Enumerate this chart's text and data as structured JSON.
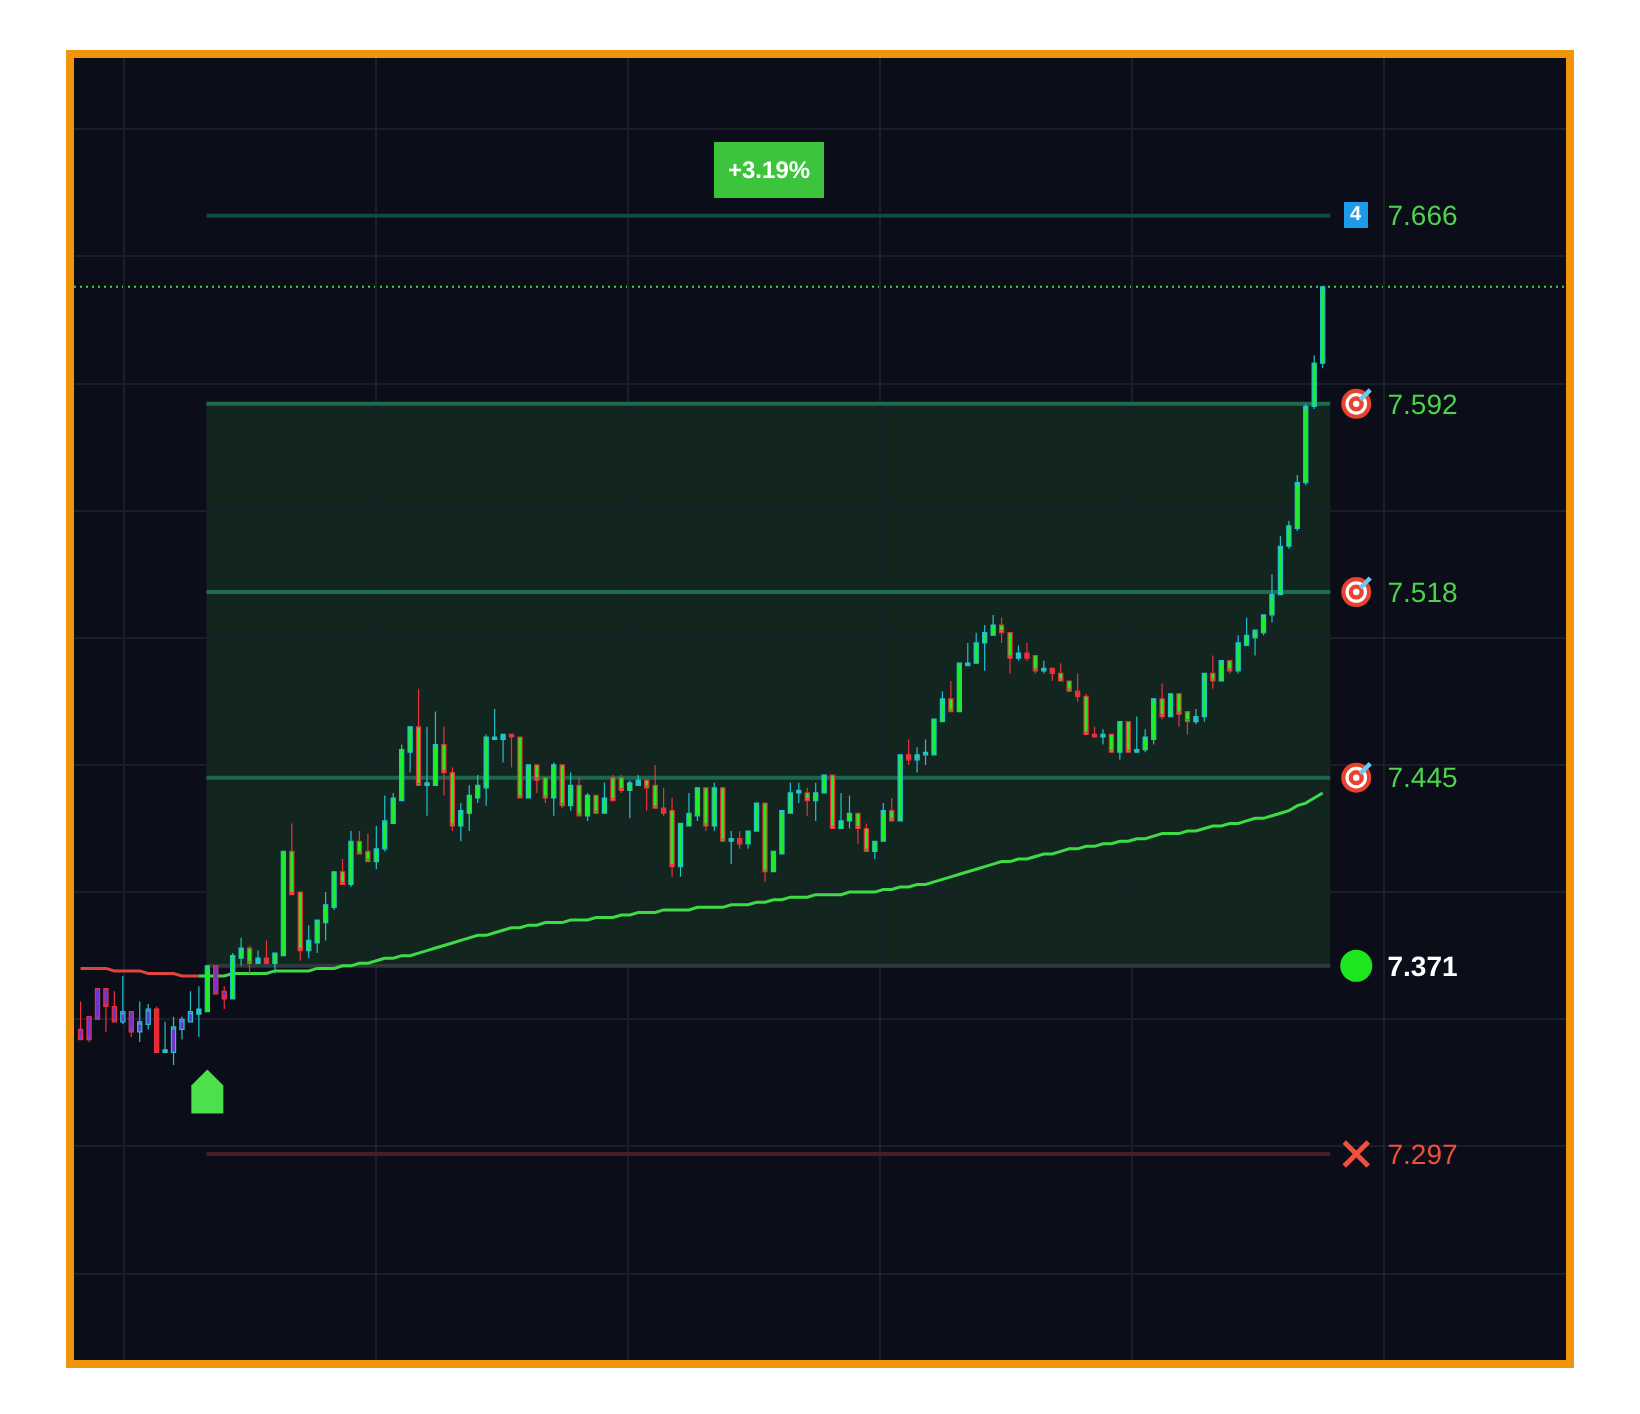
{
  "chart_data": {
    "type": "candlestick",
    "categories": [
      null,
      null,
      null,
      null,
      null,
      null,
      null,
      null,
      null,
      null,
      null,
      null,
      null,
      null,
      null,
      null,
      null,
      null,
      null,
      null,
      null,
      null,
      null,
      null,
      null,
      null,
      null,
      null,
      null,
      null,
      null,
      null,
      null,
      null,
      null,
      null,
      null,
      null,
      null,
      null,
      null,
      null,
      null,
      null,
      null,
      null,
      null,
      null,
      null,
      null,
      null,
      null,
      null,
      null,
      null,
      null,
      null,
      null,
      null,
      null,
      null,
      null,
      null,
      null,
      null,
      null,
      null,
      null,
      null,
      null,
      null,
      null,
      null,
      null,
      null,
      null,
      null,
      null,
      null,
      null,
      null,
      null,
      null,
      null,
      null,
      null,
      null,
      null,
      null,
      null,
      null,
      null,
      null,
      null,
      null,
      null,
      null,
      null,
      null,
      null,
      null,
      null,
      null,
      null,
      null,
      null,
      null,
      null,
      null,
      null,
      null,
      null,
      null,
      null,
      null,
      null,
      null,
      null,
      null,
      null,
      null,
      null,
      null,
      null,
      null,
      null,
      null,
      null,
      null,
      null,
      null,
      null,
      null,
      null,
      null,
      null,
      null,
      null,
      null,
      null,
      null,
      null,
      null,
      null,
      null,
      null,
      null,
      null
    ],
    "ohlc": [
      [
        7.346,
        7.357,
        7.342,
        7.342
      ],
      [
        7.351,
        7.351,
        7.341,
        7.342
      ],
      [
        7.362,
        7.362,
        7.35,
        7.35
      ],
      [
        7.362,
        7.362,
        7.345,
        7.355
      ],
      [
        7.355,
        7.361,
        7.349,
        7.349
      ],
      [
        7.349,
        7.367,
        7.348,
        7.353
      ],
      [
        7.353,
        7.353,
        7.343,
        7.345
      ],
      [
        7.345,
        7.357,
        7.341,
        7.349
      ],
      [
        7.348,
        7.356,
        7.346,
        7.354
      ],
      [
        7.354,
        7.355,
        7.337,
        7.337
      ],
      [
        7.337,
        7.349,
        7.337,
        7.338
      ],
      [
        7.337,
        7.351,
        7.332,
        7.347
      ],
      [
        7.346,
        7.351,
        7.342,
        7.35
      ],
      [
        7.349,
        7.361,
        7.349,
        7.353
      ],
      [
        7.352,
        7.363,
        7.343,
        7.354
      ],
      [
        7.353,
        7.371,
        7.353,
        7.371
      ],
      [
        7.371,
        7.371,
        7.36,
        7.36
      ],
      [
        7.361,
        7.363,
        7.354,
        7.358
      ],
      [
        7.358,
        7.376,
        7.358,
        7.375
      ],
      [
        7.374,
        7.382,
        7.371,
        7.378
      ],
      [
        7.378,
        7.379,
        7.368,
        7.372
      ],
      [
        7.372,
        7.377,
        7.372,
        7.374
      ],
      [
        7.374,
        7.381,
        7.372,
        7.372
      ],
      [
        7.372,
        7.376,
        7.368,
        7.376
      ],
      [
        7.375,
        7.416,
        7.375,
        7.416
      ],
      [
        7.416,
        7.427,
        7.399,
        7.399
      ],
      [
        7.4,
        7.4,
        7.373,
        7.377
      ],
      [
        7.377,
        7.387,
        7.374,
        7.381
      ],
      [
        7.38,
        7.389,
        7.376,
        7.389
      ],
      [
        7.388,
        7.4,
        7.381,
        7.395
      ],
      [
        7.394,
        7.408,
        7.393,
        7.408
      ],
      [
        7.408,
        7.413,
        7.403,
        7.403
      ],
      [
        7.403,
        7.424,
        7.402,
        7.42
      ],
      [
        7.42,
        7.424,
        7.415,
        7.415
      ],
      [
        7.416,
        7.423,
        7.412,
        7.412
      ],
      [
        7.412,
        7.426,
        7.409,
        7.417
      ],
      [
        7.417,
        7.438,
        7.416,
        7.428
      ],
      [
        7.427,
        7.439,
        7.427,
        7.437
      ],
      [
        7.436,
        7.458,
        7.436,
        7.456
      ],
      [
        7.455,
        7.465,
        7.447,
        7.465
      ],
      [
        7.465,
        7.48,
        7.442,
        7.442
      ],
      [
        7.442,
        7.465,
        7.43,
        7.443
      ],
      [
        7.442,
        7.471,
        7.442,
        7.458
      ],
      [
        7.458,
        7.465,
        7.438,
        7.447
      ],
      [
        7.447,
        7.449,
        7.424,
        7.426
      ],
      [
        7.426,
        7.435,
        7.42,
        7.432
      ],
      [
        7.431,
        7.442,
        7.424,
        7.438
      ],
      [
        7.437,
        7.446,
        7.435,
        7.442
      ],
      [
        7.441,
        7.462,
        7.434,
        7.461
      ],
      [
        7.46,
        7.472,
        7.46,
        7.461
      ],
      [
        7.46,
        7.462,
        7.451,
        7.462
      ],
      [
        7.462,
        7.462,
        7.449,
        7.461
      ],
      [
        7.461,
        7.461,
        7.437,
        7.437
      ],
      [
        7.437,
        7.45,
        7.437,
        7.45
      ],
      [
        7.45,
        7.45,
        7.439,
        7.444
      ],
      [
        7.445,
        7.445,
        7.435,
        7.437
      ],
      [
        7.437,
        7.451,
        7.43,
        7.45
      ],
      [
        7.45,
        7.45,
        7.433,
        7.434
      ],
      [
        7.434,
        7.447,
        7.432,
        7.442
      ],
      [
        7.442,
        7.445,
        7.43,
        7.43
      ],
      [
        7.43,
        7.439,
        7.428,
        7.438
      ],
      [
        7.438,
        7.438,
        7.431,
        7.431
      ],
      [
        7.431,
        7.443,
        7.431,
        7.437
      ],
      [
        7.445,
        7.446,
        7.436,
        7.436
      ],
      [
        7.445,
        7.446,
        7.439,
        7.44
      ],
      [
        7.44,
        7.444,
        7.429,
        7.443
      ],
      [
        7.442,
        7.446,
        7.442,
        7.444
      ],
      [
        7.444,
        7.444,
        7.432,
        7.441
      ],
      [
        7.442,
        7.45,
        7.433,
        7.433
      ],
      [
        7.433,
        7.441,
        7.43,
        7.431
      ],
      [
        7.432,
        7.437,
        7.406,
        7.41
      ],
      [
        7.41,
        7.427,
        7.406,
        7.427
      ],
      [
        7.426,
        7.439,
        7.426,
        7.431
      ],
      [
        7.43,
        7.441,
        7.428,
        7.441
      ],
      [
        7.441,
        7.441,
        7.424,
        7.426
      ],
      [
        7.426,
        7.443,
        7.424,
        7.441
      ],
      [
        7.441,
        7.441,
        7.42,
        7.42
      ],
      [
        7.42,
        7.424,
        7.411,
        7.421
      ],
      [
        7.421,
        7.424,
        7.417,
        7.419
      ],
      [
        7.419,
        7.424,
        7.417,
        7.424
      ],
      [
        7.424,
        7.435,
        7.424,
        7.435
      ],
      [
        7.435,
        7.435,
        7.404,
        7.408
      ],
      [
        7.408,
        7.416,
        7.408,
        7.416
      ],
      [
        7.415,
        7.432,
        7.415,
        7.432
      ],
      [
        7.431,
        7.443,
        7.431,
        7.439
      ],
      [
        7.439,
        7.443,
        7.435,
        7.44
      ],
      [
        7.439,
        7.441,
        7.43,
        7.436
      ],
      [
        7.436,
        7.443,
        7.428,
        7.439
      ],
      [
        7.439,
        7.446,
        7.439,
        7.446
      ],
      [
        7.446,
        7.446,
        7.425,
        7.425
      ],
      [
        7.425,
        7.439,
        7.425,
        7.428
      ],
      [
        7.428,
        7.438,
        7.425,
        7.431
      ],
      [
        7.431,
        7.431,
        7.419,
        7.425
      ],
      [
        7.425,
        7.427,
        7.416,
        7.416
      ],
      [
        7.416,
        7.42,
        7.413,
        7.42
      ],
      [
        7.42,
        7.435,
        7.42,
        7.432
      ],
      [
        7.432,
        7.437,
        7.428,
        7.428
      ],
      [
        7.428,
        7.454,
        7.428,
        7.454
      ],
      [
        7.454,
        7.46,
        7.45,
        7.452
      ],
      [
        7.452,
        7.457,
        7.447,
        7.454
      ],
      [
        7.454,
        7.46,
        7.45,
        7.455
      ],
      [
        7.454,
        7.468,
        7.454,
        7.468
      ],
      [
        7.467,
        7.479,
        7.467,
        7.476
      ],
      [
        7.476,
        7.483,
        7.471,
        7.471
      ],
      [
        7.471,
        7.49,
        7.471,
        7.49
      ],
      [
        7.489,
        7.498,
        7.489,
        7.49
      ],
      [
        7.49,
        7.502,
        7.49,
        7.498
      ],
      [
        7.498,
        7.505,
        7.487,
        7.502
      ],
      [
        7.501,
        7.509,
        7.501,
        7.505
      ],
      [
        7.505,
        7.508,
        7.498,
        7.502
      ],
      [
        7.502,
        7.502,
        7.486,
        7.492
      ],
      [
        7.492,
        7.497,
        7.491,
        7.494
      ],
      [
        7.494,
        7.498,
        7.491,
        7.492
      ],
      [
        7.493,
        7.493,
        7.486,
        7.487
      ],
      [
        7.487,
        7.491,
        7.486,
        7.488
      ],
      [
        7.488,
        7.488,
        7.483,
        7.486
      ],
      [
        7.486,
        7.49,
        7.483,
        7.483
      ],
      [
        7.483,
        7.483,
        7.479,
        7.479
      ],
      [
        7.479,
        7.486,
        7.475,
        7.477
      ],
      [
        7.477,
        7.478,
        7.462,
        7.462
      ],
      [
        7.462,
        7.465,
        7.461,
        7.461
      ],
      [
        7.461,
        7.464,
        7.458,
        7.462
      ],
      [
        7.462,
        7.462,
        7.455,
        7.455
      ],
      [
        7.455,
        7.467,
        7.452,
        7.467
      ],
      [
        7.467,
        7.467,
        7.455,
        7.455
      ],
      [
        7.455,
        7.469,
        7.455,
        7.456
      ],
      [
        7.456,
        7.464,
        7.455,
        7.461
      ],
      [
        7.46,
        7.476,
        7.458,
        7.476
      ],
      [
        7.476,
        7.482,
        7.468,
        7.469
      ],
      [
        7.469,
        7.478,
        7.469,
        7.478
      ],
      [
        7.478,
        7.478,
        7.465,
        7.47
      ],
      [
        7.471,
        7.471,
        7.462,
        7.467
      ],
      [
        7.467,
        7.472,
        7.466,
        7.469
      ],
      [
        7.469,
        7.486,
        7.467,
        7.486
      ],
      [
        7.486,
        7.493,
        7.48,
        7.483
      ],
      [
        7.483,
        7.491,
        7.483,
        7.491
      ],
      [
        7.491,
        7.491,
        7.486,
        7.487
      ],
      [
        7.487,
        7.501,
        7.486,
        7.498
      ],
      [
        7.497,
        7.508,
        7.497,
        7.501
      ],
      [
        7.5,
        7.503,
        7.493,
        7.503
      ],
      [
        7.502,
        7.509,
        7.501,
        7.509
      ],
      [
        7.509,
        7.525,
        7.506,
        7.517
      ],
      [
        7.517,
        7.54,
        7.517,
        7.536
      ],
      [
        7.536,
        7.546,
        7.535,
        7.544
      ],
      [
        7.543,
        7.564,
        7.542,
        7.561
      ],
      [
        7.561,
        7.592,
        7.56,
        7.591
      ],
      [
        7.591,
        7.611,
        7.59,
        7.608
      ],
      [
        7.608,
        7.638,
        7.606,
        7.638
      ]
    ],
    "colors": [
      "#6b35d6",
      "#6b35d6",
      "#6b35d6",
      "#6b35d6",
      "#6b35d6",
      "#6b35d6",
      "#6b35d6",
      "#6b35d6",
      "#6b35d6",
      "#f0262a",
      "#22c3c8",
      "#6b35d6",
      "#6b35d6",
      "#6b35d6",
      "#22c3c8",
      "#1ef01e",
      "#6b35d6",
      "#6b35d6",
      "#1ef01e",
      "#1ef01e",
      "#1ef01e",
      "#22c3c8",
      "#e8323c",
      "#1ef01e",
      "#1ef01e",
      "#1ef01e",
      "#1ef01e",
      "#1ef01e",
      "#1ef01e",
      "#1ef01e",
      "#1ef01e",
      "#1ef01e",
      "#1ef01e",
      "#1ef01e",
      "#1ef01e",
      "#1ef01e",
      "#1ef01e",
      "#1ef01e",
      "#1ef01e",
      "#1ef01e",
      "#1ef01e",
      "#22c3c8",
      "#1ef01e",
      "#1ef01e",
      "#1ef01e",
      "#1ef01e",
      "#1ef01e",
      "#1ef01e",
      "#1ef01e",
      "#22c3c8",
      "#22c3c8",
      "#e8323c",
      "#1ef01e",
      "#1ef01e",
      "#1ef01e",
      "#1ef01e",
      "#1ef01e",
      "#1ef01e",
      "#1ef01e",
      "#1ef01e",
      "#1ef01e",
      "#1ef01e",
      "#1ef01e",
      "#1ef01e",
      "#1ef01e",
      "#1ef01e",
      "#22c3c8",
      "#1ef01e",
      "#1ef01e",
      "#e8323c",
      "#1ef01e",
      "#1ef01e",
      "#1ef01e",
      "#1ef01e",
      "#1ef01e",
      "#1ef01e",
      "#1ef01e",
      "#22c3c8",
      "#e8323c",
      "#1ef01e",
      "#1ef01e",
      "#1ef01e",
      "#1ef01e",
      "#1ef01e",
      "#1ef01e",
      "#22c3c8",
      "#1ef01e",
      "#1ef01e",
      "#1ef01e",
      "#1ef01e",
      "#1ef01e",
      "#1ef01e",
      "#1ef01e",
      "#1ef01e",
      "#1ef01e",
      "#1ef01e",
      "#1ef01e",
      "#1ef01e",
      "#e8323c",
      "#22c3c8",
      "#22c3c8",
      "#1ef01e",
      "#1ef01e",
      "#1ef01e",
      "#1ef01e",
      "#22c3c8",
      "#1ef01e",
      "#1ef01e",
      "#1ef01e",
      "#1ef01e",
      "#1ef01e",
      "#22c3c8",
      "#e8323c",
      "#1ef01e",
      "#22c3c8",
      "#e8323c",
      "#1ef01e",
      "#1ef01e",
      "#e8323c",
      "#1ef01e",
      "#e8323c",
      "#22c3c8",
      "#1ef01e",
      "#1ef01e",
      "#1ef01e",
      "#22c3c8",
      "#1ef01e",
      "#1ef01e",
      "#1ef01e",
      "#1ef01e",
      "#1ef01e",
      "#1ef01e",
      "#22c3c8",
      "#1ef01e",
      "#1ef01e",
      "#1ef01e",
      "#1ef01e",
      "#1ef01e",
      "#1ef01e",
      "#1ef01e",
      "#1ef01e",
      "#1ef01e",
      "#1ef01e",
      "#1ef01e",
      "#1ef01e",
      "#1ef01e",
      "#1ef01e",
      "#1ef01e"
    ],
    "series": [
      {
        "type": "line",
        "color": "#e0443c",
        "values": [
          7.37,
          7.37,
          7.37,
          7.37,
          7.369,
          7.369,
          7.369,
          7.369,
          7.368,
          7.368,
          7.368,
          7.368,
          7.367,
          7.367,
          7.367,
          null,
          null,
          null,
          null,
          null,
          null,
          null,
          null,
          null,
          null,
          null,
          null,
          null,
          null,
          null,
          null,
          null,
          null,
          null,
          null,
          null,
          null,
          null,
          null,
          null,
          null,
          null,
          null,
          null,
          null,
          null,
          null,
          null,
          null,
          null,
          null,
          null,
          null,
          null,
          null,
          null,
          null,
          null,
          null,
          null,
          null,
          null,
          null,
          null,
          null,
          null,
          null,
          null,
          null,
          null,
          null,
          null,
          null,
          null,
          null,
          null,
          null,
          null,
          null,
          null,
          null,
          null,
          null,
          null,
          null,
          null,
          null,
          null,
          null,
          null,
          null,
          null,
          null,
          null,
          null,
          null,
          null,
          null,
          null,
          null,
          null,
          null,
          null,
          null,
          null,
          null,
          null,
          null,
          null,
          null,
          null,
          null,
          null,
          null,
          null,
          null,
          null,
          null,
          null,
          null,
          null,
          null,
          null,
          null,
          null,
          null,
          null,
          null,
          null,
          null,
          null,
          null,
          null,
          null,
          null,
          null,
          null,
          null,
          null,
          null,
          null,
          null,
          null,
          null,
          null,
          null,
          null,
          null
        ]
      },
      {
        "type": "line",
        "color": "#3ddc47",
        "values": [
          null,
          null,
          null,
          null,
          null,
          null,
          null,
          null,
          null,
          null,
          null,
          null,
          null,
          null,
          7.367,
          7.367,
          7.367,
          7.367,
          7.368,
          7.368,
          7.368,
          7.368,
          7.368,
          7.369,
          7.369,
          7.369,
          7.369,
          7.369,
          7.37,
          7.37,
          7.37,
          7.371,
          7.371,
          7.372,
          7.372,
          7.373,
          7.374,
          7.374,
          7.375,
          7.375,
          7.376,
          7.377,
          7.378,
          7.379,
          7.38,
          7.381,
          7.382,
          7.383,
          7.383,
          7.384,
          7.385,
          7.386,
          7.386,
          7.387,
          7.387,
          7.388,
          7.388,
          7.388,
          7.389,
          7.389,
          7.389,
          7.39,
          7.39,
          7.39,
          7.391,
          7.391,
          7.392,
          7.392,
          7.392,
          7.393,
          7.393,
          7.393,
          7.393,
          7.394,
          7.394,
          7.394,
          7.394,
          7.395,
          7.395,
          7.395,
          7.396,
          7.396,
          7.397,
          7.397,
          7.398,
          7.398,
          7.398,
          7.399,
          7.399,
          7.399,
          7.399,
          7.4,
          7.4,
          7.4,
          7.4,
          7.401,
          7.401,
          7.402,
          7.402,
          7.403,
          7.403,
          7.404,
          7.405,
          7.406,
          7.407,
          7.408,
          7.409,
          7.41,
          7.411,
          7.412,
          7.412,
          7.413,
          7.413,
          7.414,
          7.415,
          7.415,
          7.416,
          7.417,
          7.417,
          7.418,
          7.418,
          7.419,
          7.419,
          7.42,
          7.42,
          7.421,
          7.421,
          7.422,
          7.423,
          7.423,
          7.423,
          7.424,
          7.424,
          7.425,
          7.426,
          7.426,
          7.427,
          7.427,
          7.428,
          7.429,
          7.429,
          7.43,
          7.431,
          7.432,
          7.434,
          7.435,
          7.437,
          7.439
        ]
      }
    ],
    "ylim": [
      7.216,
      7.728
    ],
    "yticks": [
      {
        "value": 7.25,
        "label": null
      },
      {
        "value": 7.297,
        "label": "7.297"
      },
      {
        "value": 7.3,
        "label": null
      },
      {
        "value": 7.35,
        "label": null
      },
      {
        "value": 7.371,
        "label": "7.371"
      },
      {
        "value": 7.4,
        "label": null
      },
      {
        "value": 7.445,
        "label": "7.445"
      },
      {
        "value": 7.45,
        "label": null
      },
      {
        "value": 7.5,
        "label": null
      },
      {
        "value": 7.518,
        "label": "7.518"
      },
      {
        "value": 7.55,
        "label": null
      },
      {
        "value": 7.592,
        "label": "7.592"
      },
      {
        "value": 7.6,
        "label": null
      },
      {
        "value": 7.65,
        "label": null
      },
      {
        "value": 7.666,
        "label": "7.666"
      },
      {
        "value": 7.7,
        "label": null
      }
    ],
    "tick_labels": "y",
    "grid": true,
    "bands": [
      {
        "axis": "y",
        "from": 7.371,
        "to": 7.592,
        "color": "#13251f"
      }
    ],
    "ref_lines": [
      {
        "axis": "y",
        "value": 7.666,
        "color": "#0f4a44"
      },
      {
        "axis": "y",
        "value": 7.638,
        "color": "#3ddc47",
        "line_style": "dotted"
      },
      {
        "axis": "y",
        "value": 7.592,
        "color": "#1d6a50"
      },
      {
        "axis": "y",
        "value": 7.518,
        "color": "#1f6c52"
      },
      {
        "axis": "y",
        "value": 7.445,
        "color": "#1b674e"
      },
      {
        "axis": "y",
        "value": 7.371,
        "color": "#2a3b38"
      },
      {
        "axis": "y",
        "value": 7.297,
        "color": "#4a1c25"
      }
    ],
    "annotations": [
      "+3.19%",
      "4"
    ]
  }
}
